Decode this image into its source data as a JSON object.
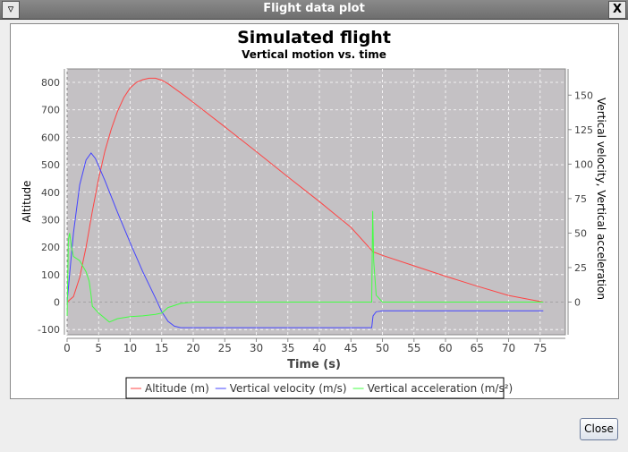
{
  "window": {
    "title": "Flight data plot",
    "menu_icon": "triangle-down-icon",
    "close_icon": "x-icon"
  },
  "buttons": {
    "close": "Close"
  },
  "chart_data": {
    "type": "line",
    "title": "Simulated flight",
    "subtitle": "Vertical motion vs. time",
    "xlabel": "Time (s)",
    "ylabel_left": "Altitude",
    "ylabel_right": "Vertical velocity, Vertical acceleration",
    "xlim": [
      0,
      79
    ],
    "ylim_left": [
      -119,
      849
    ],
    "ylim_right": [
      -23.7,
      169
    ],
    "xticks": [
      0,
      5,
      10,
      15,
      20,
      25,
      30,
      35,
      40,
      45,
      50,
      55,
      60,
      65,
      70,
      75
    ],
    "yticks_left": [
      -100,
      0,
      100,
      200,
      300,
      400,
      500,
      600,
      700,
      800
    ],
    "yticks_right": [
      0,
      25,
      50,
      75,
      100,
      125,
      150
    ],
    "grid": true,
    "legend_position": "bottom",
    "series": [
      {
        "name": "Altitude (m)",
        "axis": "left",
        "color": "#ff4444",
        "x": [
          0,
          1,
          2,
          3,
          4,
          5,
          6,
          7,
          8,
          9,
          10,
          11,
          12,
          13,
          14,
          15,
          16,
          18,
          20,
          25,
          30,
          35,
          40,
          45,
          48.5,
          50,
          55,
          60,
          65,
          70,
          75.5
        ],
        "y": [
          0,
          20,
          90,
          200,
          330,
          450,
          550,
          630,
          695,
          745,
          780,
          800,
          810,
          815,
          815,
          808,
          795,
          762,
          727,
          638,
          548,
          456,
          366,
          272,
          183,
          170,
          132,
          94,
          58,
          24,
          0
        ]
      },
      {
        "name": "Vertical velocity (m/s)",
        "axis": "right",
        "color": "#4444ff",
        "x": [
          0,
          0.5,
          1,
          2,
          3,
          3.8,
          4.5,
          6,
          8,
          10,
          12,
          14,
          15,
          16,
          17,
          18,
          20,
          48.3,
          48.5,
          49,
          50,
          75.5
        ],
        "y": [
          0,
          25,
          50,
          85,
          103,
          108,
          104,
          88,
          65,
          43,
          22,
          3,
          -7,
          -14,
          -17.5,
          -18.6,
          -18.6,
          -18.6,
          -10,
          -7,
          -6.4,
          -6.4
        ]
      },
      {
        "name": "Vertical acceleration (m/s²)",
        "axis": "right",
        "color": "#44ff44",
        "x": [
          0,
          0.2,
          0.4,
          0.7,
          1,
          2,
          3,
          3.5,
          3.8,
          4,
          5,
          6.7,
          8,
          10,
          12,
          14,
          15,
          16,
          18,
          20,
          48.3,
          48.45,
          48.6,
          49,
          50,
          75.5
        ],
        "y": [
          -10,
          45,
          50,
          40,
          33,
          30,
          22,
          15,
          5,
          -3,
          -8,
          -14.5,
          -12,
          -10.5,
          -10,
          -9,
          -8,
          -4,
          -1,
          0,
          0,
          66,
          30,
          5,
          0,
          0
        ]
      }
    ]
  }
}
